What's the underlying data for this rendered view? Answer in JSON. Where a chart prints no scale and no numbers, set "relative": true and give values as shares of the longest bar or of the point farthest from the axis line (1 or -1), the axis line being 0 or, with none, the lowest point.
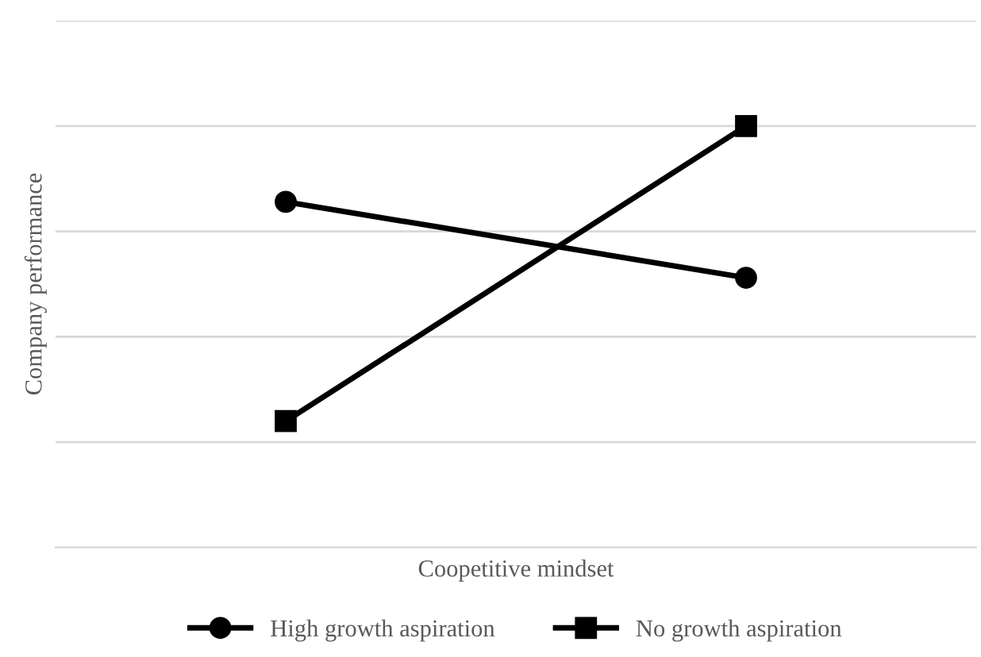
{
  "chart_data": {
    "type": "line",
    "xlabel": "Coopetitive mindset",
    "ylabel": "Company performance",
    "categories": [
      null,
      null
    ],
    "relative": true,
    "grid": "y",
    "legend": "bottom",
    "series": [
      {
        "name": "High growth aspiration",
        "color": "#000000",
        "marker": "circle",
        "values": [
          0.82,
          0.64
        ]
      },
      {
        "name": "No growth aspiration",
        "color": "#000000",
        "marker": "square",
        "values": [
          0.3,
          1.0
        ]
      }
    ]
  }
}
